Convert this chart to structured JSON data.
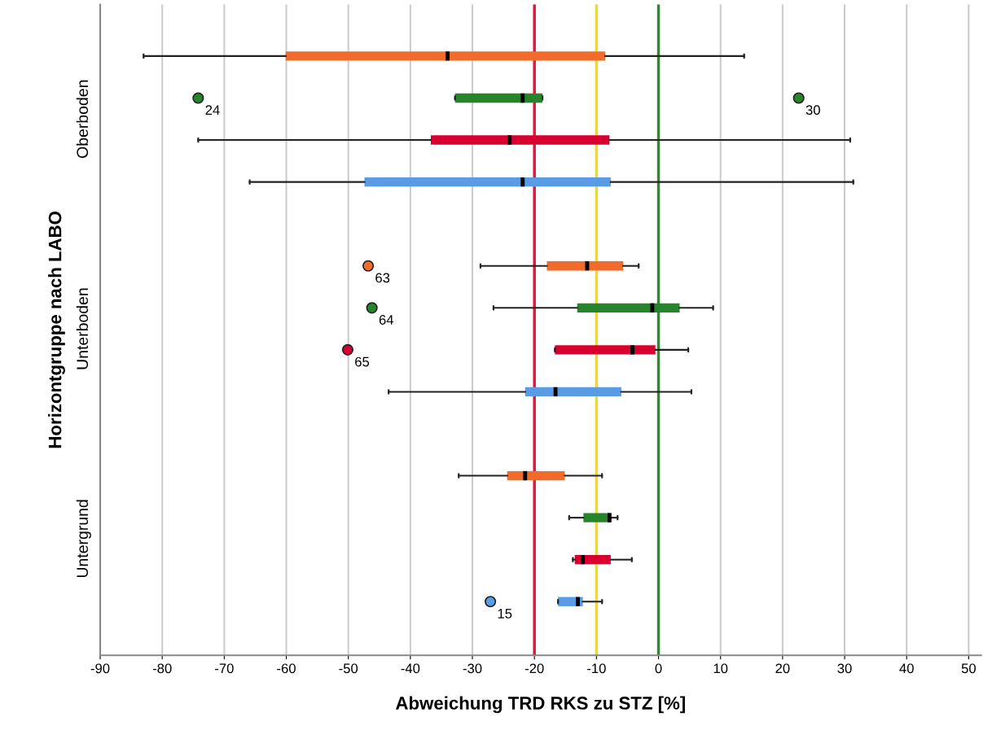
{
  "chart_data": {
    "type": "box",
    "orientation": "horizontal",
    "xlabel": "Abweichung TRD RKS zu STZ [%]",
    "ylabel": "Horizontgruppe nach LABO",
    "categories": [
      "Oberboden",
      "Unterboden",
      "Untergrund"
    ],
    "xlim": [
      -90,
      52
    ],
    "xticks": [
      -90,
      -80,
      -70,
      -60,
      -50,
      -40,
      -30,
      -20,
      -10,
      0,
      10,
      20,
      30,
      40,
      50
    ],
    "grid": "x",
    "legend": false,
    "marker": "circle",
    "series": [
      {
        "color": "#f26b2a",
        "boxes": [
          {
            "low": -83.0,
            "q1": -60.1,
            "median": -34.0,
            "q3": -8.6,
            "high": 13.8
          },
          {
            "low": -28.7,
            "q1": -18.0,
            "median": -11.5,
            "q3": -5.7,
            "high": -3.2,
            "outliers": [
              -46.8
            ]
          },
          {
            "low": -32.2,
            "q1": -24.4,
            "median": -21.5,
            "q3": -15.1,
            "high": -9.1
          }
        ]
      },
      {
        "color": "#26842a",
        "boxes": [
          {
            "low": -32.8,
            "q1": -32.8,
            "median": -21.9,
            "q3": -18.7,
            "high": -18.7,
            "outliers": [
              -74.2,
              22.6
            ]
          },
          {
            "low": -26.6,
            "q1": -13.1,
            "median": -1.0,
            "q3": 3.4,
            "high": 8.8,
            "outliers": [
              -46.2
            ]
          },
          {
            "low": -14.4,
            "q1": -12.1,
            "median": -7.9,
            "q3": -7.7,
            "high": -6.6
          }
        ]
      },
      {
        "color": "#d8002f",
        "boxes": [
          {
            "low": -74.2,
            "q1": -36.7,
            "median": -24.0,
            "q3": -7.9,
            "high": 30.9
          },
          {
            "low": -16.7,
            "q1": -16.7,
            "median": -4.2,
            "q3": -0.5,
            "high": 4.8,
            "outliers": [
              -50.1
            ]
          },
          {
            "low": -13.8,
            "q1": -13.5,
            "median": -12.2,
            "q3": -7.7,
            "high": -4.3
          }
        ]
      },
      {
        "color": "#5a9be6",
        "boxes": [
          {
            "low": -65.9,
            "q1": -47.4,
            "median": -21.9,
            "q3": -7.7,
            "high": 31.4
          },
          {
            "low": -43.5,
            "q1": -21.5,
            "median": -16.6,
            "q3": -6.0,
            "high": 5.3
          },
          {
            "low": -16.2,
            "q1": -16.2,
            "median": -13.0,
            "q3": -12.2,
            "high": -9.1,
            "outliers": [
              -27.1
            ]
          }
        ]
      }
    ],
    "ref_lines": [
      {
        "axis": "x",
        "value": -20,
        "color": "#e3173e"
      },
      {
        "axis": "x",
        "value": -10,
        "color": "#f0dc1e"
      },
      {
        "axis": "x",
        "value": 0,
        "color": "#2e8b2e"
      }
    ],
    "annotations": [
      "24",
      "30",
      "63",
      "64",
      "65",
      "15"
    ]
  }
}
